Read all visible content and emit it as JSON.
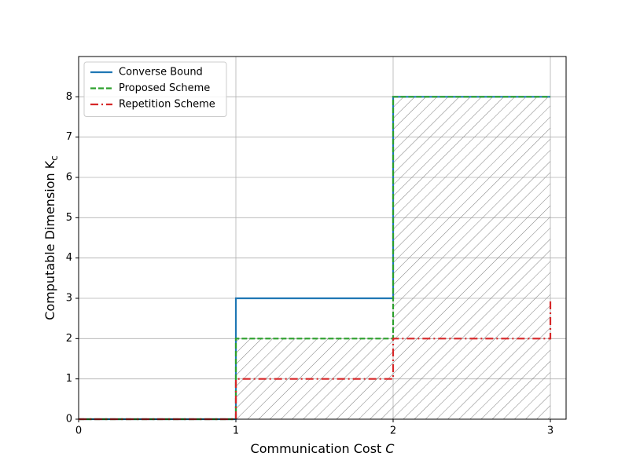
{
  "chart_data": {
    "type": "step",
    "xlabel": "Communication Cost",
    "xlabel_variable": "C",
    "ylabel": "Computable Dimension K",
    "ylabel_subscript": "c",
    "xlim": [
      0,
      3.1
    ],
    "ylim": [
      0,
      9
    ],
    "xticks": [
      0,
      1,
      2,
      3
    ],
    "yticks": [
      0,
      1,
      2,
      3,
      4,
      5,
      6,
      7,
      8
    ],
    "grid": true,
    "legend": "upper left",
    "series": [
      {
        "name": "Converse Bound",
        "color": "#1f77b4",
        "linestyle": "solid",
        "x": [
          0,
          1,
          1,
          2,
          2,
          3
        ],
        "values": [
          0,
          0,
          3,
          3,
          8,
          8
        ]
      },
      {
        "name": "Proposed Scheme",
        "color": "#2ca02c",
        "linestyle": "dashed",
        "hatch": true,
        "hatch_color": "#808080",
        "x": [
          0,
          1,
          1,
          2,
          2,
          3
        ],
        "values": [
          0,
          0,
          2,
          2,
          8,
          8
        ]
      },
      {
        "name": "Repetition Scheme",
        "color": "#d62728",
        "linestyle": "dashdot",
        "x": [
          0,
          1,
          1,
          2,
          2,
          3,
          3
        ],
        "values": [
          0,
          0,
          1,
          1,
          2,
          2,
          3
        ]
      }
    ]
  }
}
